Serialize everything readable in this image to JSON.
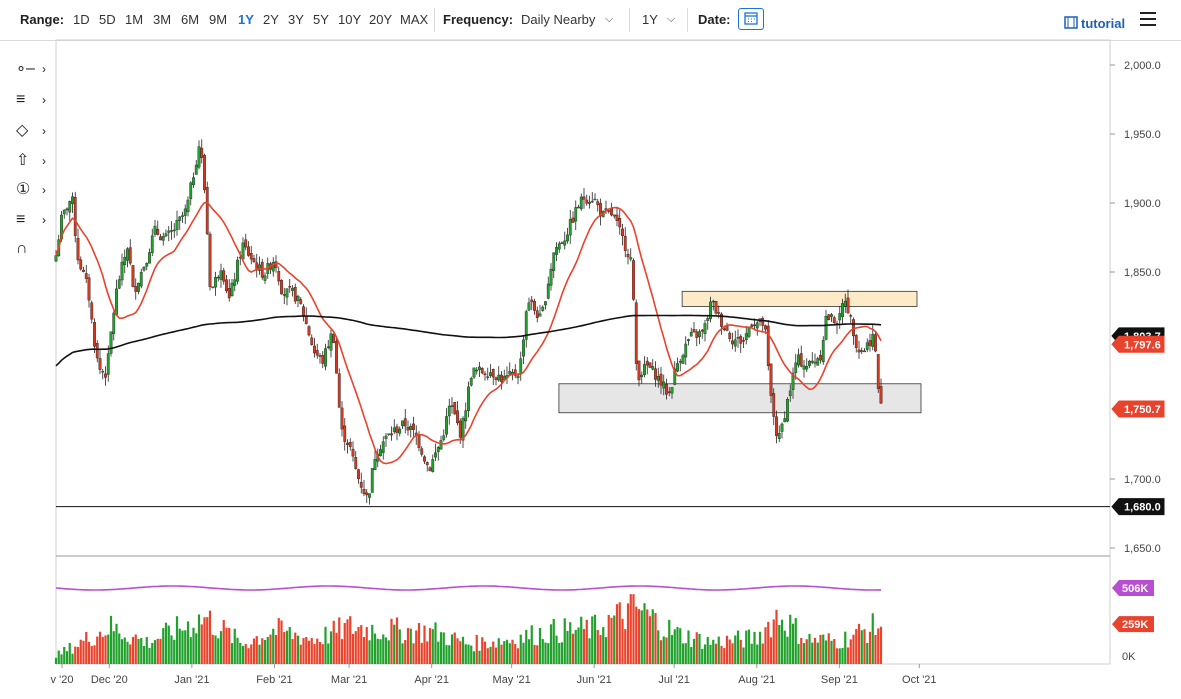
{
  "toolbar": {
    "range_label": "Range:",
    "ranges": [
      "1D",
      "5D",
      "1M",
      "3M",
      "6M",
      "9M",
      "1Y",
      "2Y",
      "3Y",
      "5Y",
      "10Y",
      "20Y",
      "MAX"
    ],
    "active_range": "1Y",
    "frequency_label": "Frequency:",
    "frequency_value": "Daily Nearby",
    "period_value": "1Y",
    "date_label": "Date:",
    "tutorial_label": "tutorial"
  },
  "tools": [
    "crosshair-tool",
    "fibonacci-tool",
    "shapes-tool",
    "arrow-tool",
    "count-tool",
    "pattern-tool",
    "magnet-tool"
  ],
  "chart_data": {
    "type": "candlestick",
    "y_ticks": [
      "2,000.0",
      "1,950.0",
      "1,900.0",
      "1,850.0",
      "1,700.0",
      "1,650.0"
    ],
    "x_ticks": [
      "v '20",
      "Dec '20",
      "Jan '21",
      "Feb '21",
      "Mar '21",
      "Apr '21",
      "May '21",
      "Jun '21",
      "Jul '21",
      "Aug '21",
      "Sep '21",
      "Oct '21"
    ],
    "price_labels": {
      "ma200_partial": "1,803.7",
      "ma50": "1,797.6",
      "last": "1,750.7",
      "horizontal_line": "1,680.0"
    },
    "horizontal_line_value": 1680.0,
    "resistance_zone": [
      1825,
      1836
    ],
    "support_zone": [
      1748,
      1769
    ],
    "series_points": [
      [
        "2020-11-11",
        1862
      ],
      [
        "2020-11-13",
        1888
      ],
      [
        "2020-11-17",
        1905
      ],
      [
        "2020-11-19",
        1862
      ],
      [
        "2020-11-23",
        1838
      ],
      [
        "2020-11-25",
        1805
      ],
      [
        "2020-11-27",
        1780
      ],
      [
        "2020-11-30",
        1776
      ],
      [
        "2020-12-02",
        1812
      ],
      [
        "2020-12-04",
        1840
      ],
      [
        "2020-12-08",
        1870
      ],
      [
        "2020-12-10",
        1835
      ],
      [
        "2020-12-15",
        1860
      ],
      [
        "2020-12-18",
        1880
      ],
      [
        "2020-12-22",
        1874
      ],
      [
        "2020-12-25",
        1880
      ],
      [
        "2020-12-30",
        1895
      ],
      [
        "2021-01-04",
        1945
      ],
      [
        "2021-01-06",
        1905
      ],
      [
        "2021-01-08",
        1835
      ],
      [
        "2021-01-12",
        1855
      ],
      [
        "2021-01-15",
        1830
      ],
      [
        "2021-01-20",
        1870
      ],
      [
        "2021-01-25",
        1855
      ],
      [
        "2021-01-28",
        1848
      ],
      [
        "2021-02-01",
        1860
      ],
      [
        "2021-02-04",
        1835
      ],
      [
        "2021-02-08",
        1835
      ],
      [
        "2021-02-11",
        1825
      ],
      [
        "2021-02-16",
        1792
      ],
      [
        "2021-02-19",
        1785
      ],
      [
        "2021-02-23",
        1808
      ],
      [
        "2021-02-26",
        1735
      ],
      [
        "2021-03-01",
        1725
      ],
      [
        "2021-03-04",
        1703
      ],
      [
        "2021-03-08",
        1685
      ],
      [
        "2021-03-11",
        1720
      ],
      [
        "2021-03-15",
        1730
      ],
      [
        "2021-03-18",
        1735
      ],
      [
        "2021-03-22",
        1740
      ],
      [
        "2021-03-26",
        1732
      ],
      [
        "2021-03-31",
        1707
      ],
      [
        "2021-04-05",
        1730
      ],
      [
        "2021-04-08",
        1755
      ],
      [
        "2021-04-12",
        1732
      ],
      [
        "2021-04-16",
        1778
      ],
      [
        "2021-04-20",
        1778
      ],
      [
        "2021-04-23",
        1778
      ],
      [
        "2021-04-28",
        1772
      ],
      [
        "2021-05-04",
        1778
      ],
      [
        "2021-05-07",
        1831
      ],
      [
        "2021-05-12",
        1815
      ],
      [
        "2021-05-17",
        1866
      ],
      [
        "2021-05-21",
        1875
      ],
      [
        "2021-05-26",
        1898
      ],
      [
        "2021-05-28",
        1904
      ],
      [
        "2021-06-01",
        1903
      ],
      [
        "2021-06-04",
        1891
      ],
      [
        "2021-06-08",
        1892
      ],
      [
        "2021-06-11",
        1877
      ],
      [
        "2021-06-15",
        1858
      ],
      [
        "2021-06-17",
        1774
      ],
      [
        "2021-06-21",
        1782
      ],
      [
        "2021-06-24",
        1776
      ],
      [
        "2021-06-29",
        1761
      ],
      [
        "2021-07-02",
        1783
      ],
      [
        "2021-07-07",
        1803
      ],
      [
        "2021-07-12",
        1806
      ],
      [
        "2021-07-15",
        1829
      ],
      [
        "2021-07-19",
        1813
      ],
      [
        "2021-07-23",
        1801
      ],
      [
        "2021-07-27",
        1800
      ],
      [
        "2021-07-30",
        1814
      ],
      [
        "2021-08-04",
        1812
      ],
      [
        "2021-08-06",
        1763
      ],
      [
        "2021-08-09",
        1726
      ],
      [
        "2021-08-12",
        1752
      ],
      [
        "2021-08-16",
        1787
      ],
      [
        "2021-08-20",
        1782
      ],
      [
        "2021-08-25",
        1790
      ],
      [
        "2021-08-27",
        1817
      ],
      [
        "2021-09-01",
        1815
      ],
      [
        "2021-09-03",
        1833
      ],
      [
        "2021-09-08",
        1794
      ],
      [
        "2021-09-10",
        1793
      ],
      [
        "2021-09-14",
        1805
      ],
      [
        "2021-09-16",
        1756
      ],
      [
        "2021-09-17",
        1750.7
      ]
    ],
    "volume_labels": [
      "506K",
      "259K",
      "0K"
    ],
    "volume": [
      [
        "2020-11-16",
        100
      ],
      [
        "2020-12-01",
        240
      ],
      [
        "2020-12-15",
        140
      ],
      [
        "2021-01-06",
        300
      ],
      [
        "2021-01-20",
        130
      ],
      [
        "2021-02-01",
        220
      ],
      [
        "2021-02-16",
        160
      ],
      [
        "2021-03-01",
        240
      ],
      [
        "2021-03-15",
        220
      ],
      [
        "2021-04-01",
        210
      ],
      [
        "2021-04-15",
        130
      ],
      [
        "2021-05-01",
        160
      ],
      [
        "2021-05-15",
        210
      ],
      [
        "2021-06-01",
        230
      ],
      [
        "2021-06-17",
        360
      ],
      [
        "2021-07-01",
        200
      ],
      [
        "2021-07-15",
        140
      ],
      [
        "2021-08-01",
        170
      ],
      [
        "2021-08-09",
        320
      ],
      [
        "2021-08-20",
        160
      ],
      [
        "2021-09-01",
        150
      ],
      [
        "2021-09-17",
        259
      ]
    ]
  }
}
